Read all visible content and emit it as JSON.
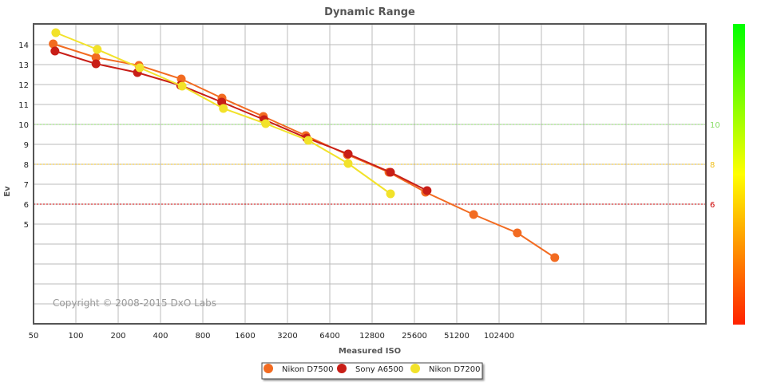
{
  "chart_data": {
    "type": "line",
    "title": "Dynamic Range",
    "xlabel": "Measured ISO",
    "ylabel": "Ev",
    "x_scale": "log2",
    "xlim": [
      50,
      3000000
    ],
    "ylim": [
      0,
      15
    ],
    "x_ticks": [
      "50",
      "100",
      "200",
      "400",
      "800",
      "1600",
      "3200",
      "6400",
      "12800",
      "25600",
      "51200",
      "102400"
    ],
    "x_tick_values": [
      50,
      100,
      200,
      400,
      800,
      1600,
      3200,
      6400,
      12800,
      25600,
      51200,
      102400
    ],
    "y_ticks": [
      5,
      6,
      7,
      8,
      9,
      10,
      11,
      12,
      13,
      14
    ],
    "grid": true,
    "legend_position": "bottom",
    "copyright": "Copyright © 2008-2015 DxO Labs",
    "thresholds": [
      {
        "value": 10,
        "label": "10",
        "color": "#88dd66"
      },
      {
        "value": 8,
        "label": "8",
        "color": "#f0c020"
      },
      {
        "value": 6,
        "label": "6",
        "color": "#cc0000"
      }
    ],
    "series": [
      {
        "name": "Nikon D7500",
        "color": "#f26b21",
        "x": [
          69,
          139,
          281,
          562,
          1095,
          2156,
          4318,
          8544,
          16870,
          30700,
          67500,
          138000,
          255000
        ],
        "y": [
          14.04,
          13.36,
          12.96,
          12.28,
          11.32,
          10.4,
          9.44,
          8.48,
          7.6,
          6.6,
          5.48,
          4.56,
          3.32
        ]
      },
      {
        "name": "Sony A6500",
        "color": "#c81e17",
        "x": [
          71,
          139,
          274,
          556,
          1090,
          2180,
          4380,
          8650,
          17300,
          31500
        ],
        "y": [
          13.68,
          13.04,
          12.6,
          11.96,
          11.12,
          10.24,
          9.32,
          8.52,
          7.6,
          6.68
        ]
      },
      {
        "name": "Nikon D7200",
        "color": "#f2e22a",
        "x": [
          72,
          142,
          285,
          570,
          1120,
          2240,
          4500,
          8650,
          17300
        ],
        "y": [
          14.6,
          13.76,
          12.84,
          11.92,
          10.8,
          10.04,
          9.2,
          8.04,
          6.52
        ]
      }
    ]
  }
}
